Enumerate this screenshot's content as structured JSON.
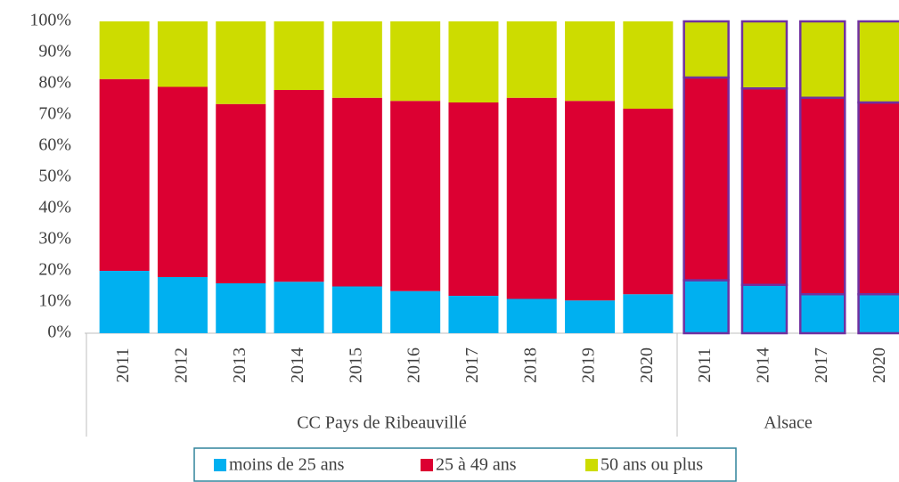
{
  "chart_data": {
    "type": "stacked_bar",
    "groups": [
      {
        "name": "CC Pays de Ribeauvillé",
        "categories": [
          "2011",
          "2012",
          "2013",
          "2014",
          "2015",
          "2016",
          "2017",
          "2018",
          "2019",
          "2020"
        ]
      },
      {
        "name": "Alsace",
        "categories": [
          "2011",
          "2014",
          "2017",
          "2020"
        ],
        "outline_color": "#7030a0"
      }
    ],
    "series": [
      {
        "name": "moins de 25 ans",
        "color": "#00b0f0",
        "values": [
          20,
          18,
          16,
          16.5,
          15,
          13.5,
          12,
          11,
          10.5,
          12.5,
          17,
          15.5,
          12.5,
          12.5
        ]
      },
      {
        "name": "25 à 49 ans",
        "color": "#dc0032",
        "values": [
          61.5,
          61,
          57.5,
          61.5,
          60.5,
          61,
          62,
          64.5,
          64,
          59.5,
          65,
          63,
          63,
          61.5
        ]
      },
      {
        "name": "50 ans ou plus",
        "color": "#cddc00",
        "values": [
          18.5,
          21,
          26.5,
          22,
          24.5,
          25.5,
          26,
          24.5,
          25.5,
          28,
          18,
          21.5,
          24.5,
          26
        ]
      }
    ],
    "ylim": [
      0,
      100
    ],
    "yticks": [
      {
        "value": 0,
        "label": "0%"
      },
      {
        "value": 10,
        "label": "10%"
      },
      {
        "value": 20,
        "label": "20%"
      },
      {
        "value": 30,
        "label": "30%"
      },
      {
        "value": 40,
        "label": "40%"
      },
      {
        "value": 50,
        "label": "50%"
      },
      {
        "value": 60,
        "label": "60%"
      },
      {
        "value": 70,
        "label": "70%"
      },
      {
        "value": 80,
        "label": "80%"
      },
      {
        "value": 90,
        "label": "90%"
      },
      {
        "value": 100,
        "label": "100%"
      }
    ],
    "legend": "bottom"
  }
}
